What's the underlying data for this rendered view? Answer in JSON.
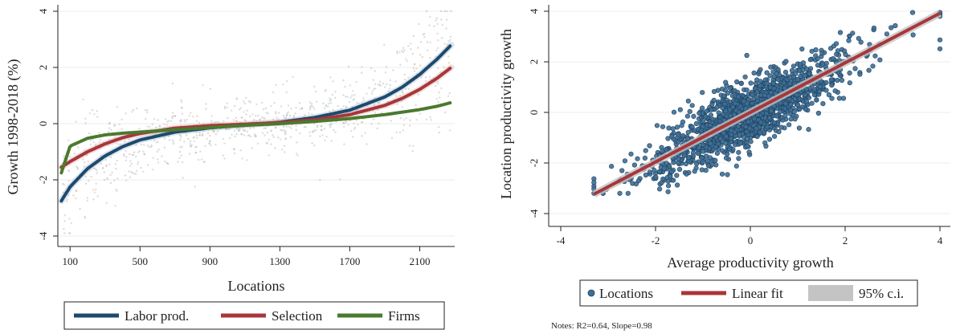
{
  "colors": {
    "labor": "#1d4a6e",
    "selection": "#a8363a",
    "firms": "#4a7a2e",
    "scatter": "#3e6f96",
    "ci": "#c4c4c4",
    "grid": "#ececec"
  },
  "left_chart": {
    "ylabel": "Growth 1998-2018 (%)",
    "xlabel": "Locations",
    "xticks": [
      "100",
      "500",
      "900",
      "1300",
      "1700",
      "2100"
    ],
    "yticks": [
      "4",
      "2",
      "0",
      "-2",
      "-4"
    ],
    "legend": [
      "Labor prod.",
      "Selection",
      "Firms"
    ]
  },
  "right_chart": {
    "ylabel": "Location productivity growth",
    "xlabel": "Average productivity growth",
    "xticks": [
      "-4",
      "-2",
      "0",
      "2",
      "4"
    ],
    "yticks": [
      "4",
      "2",
      "0",
      "-2",
      "-4"
    ],
    "legend": [
      "Locations",
      "Linear fit",
      "95% c.i."
    ],
    "notes": "Notes: R2=0.64, Slope=0.98"
  },
  "chart_data": [
    {
      "type": "line",
      "xlabel": "Locations",
      "ylabel": "Growth 1998-2018 (%)",
      "xlim": [
        30,
        2300
      ],
      "ylim": [
        -4.2,
        4.2
      ],
      "x": [
        50,
        100,
        200,
        300,
        400,
        500,
        700,
        900,
        1100,
        1300,
        1500,
        1700,
        1900,
        2000,
        2100,
        2200,
        2280
      ],
      "series": [
        {
          "name": "Labor prod.",
          "values": [
            -2.75,
            -2.25,
            -1.6,
            -1.15,
            -0.82,
            -0.58,
            -0.3,
            -0.15,
            -0.05,
            0.05,
            0.22,
            0.48,
            0.95,
            1.3,
            1.75,
            2.3,
            2.8
          ]
        },
        {
          "name": "Selection",
          "values": [
            -1.55,
            -1.35,
            -1.0,
            -0.72,
            -0.5,
            -0.35,
            -0.16,
            -0.07,
            -0.02,
            0.04,
            0.14,
            0.32,
            0.65,
            0.9,
            1.22,
            1.62,
            2.0
          ]
        },
        {
          "name": "Firms",
          "values": [
            -1.75,
            -0.8,
            -0.52,
            -0.4,
            -0.34,
            -0.3,
            -0.22,
            -0.14,
            -0.06,
            0.0,
            0.08,
            0.18,
            0.32,
            0.41,
            0.5,
            0.62,
            0.75
          ]
        }
      ],
      "scatter": {
        "name": "Locations",
        "n": 2240,
        "note": "faint background points"
      }
    },
    {
      "type": "scatter",
      "xlabel": "Average productivity growth",
      "ylabel": "Location productivity growth",
      "xlim": [
        -4.1,
        4.1
      ],
      "ylim": [
        -4.1,
        4.1
      ],
      "n_points": 1500,
      "fit": {
        "name": "Linear fit",
        "slope": 0.98,
        "intercept": 0.0,
        "x_range": [
          -3.3,
          4.0
        ]
      },
      "r2": 0.64,
      "series": [
        {
          "name": "Locations",
          "type": "scatter"
        },
        {
          "name": "Linear fit",
          "type": "line"
        },
        {
          "name": "95% c.i.",
          "type": "band"
        }
      ]
    }
  ]
}
